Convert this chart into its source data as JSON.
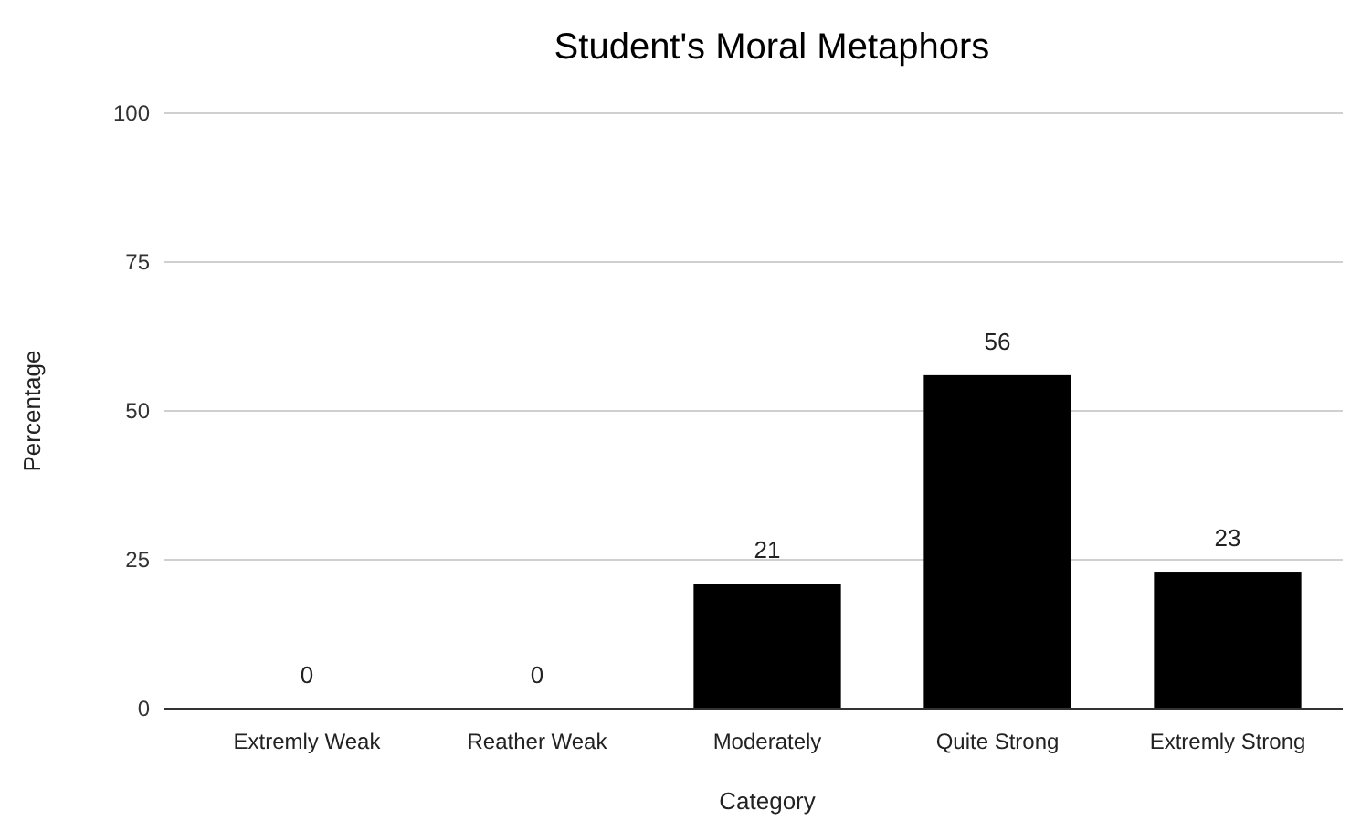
{
  "chart_data": {
    "type": "bar",
    "title": "Student's Moral Metaphors",
    "xlabel": "Category",
    "ylabel": "Percentage",
    "categories": [
      "Extremly Weak",
      "Reather Weak",
      "Moderately",
      "Quite Strong",
      "Extremly Strong"
    ],
    "values": [
      0,
      0,
      21,
      56,
      23
    ],
    "color": "#000000",
    "ylim": [
      0,
      100
    ],
    "yticks": [
      0,
      25,
      50,
      75,
      100
    ],
    "grid": "y",
    "data_labels": true
  }
}
